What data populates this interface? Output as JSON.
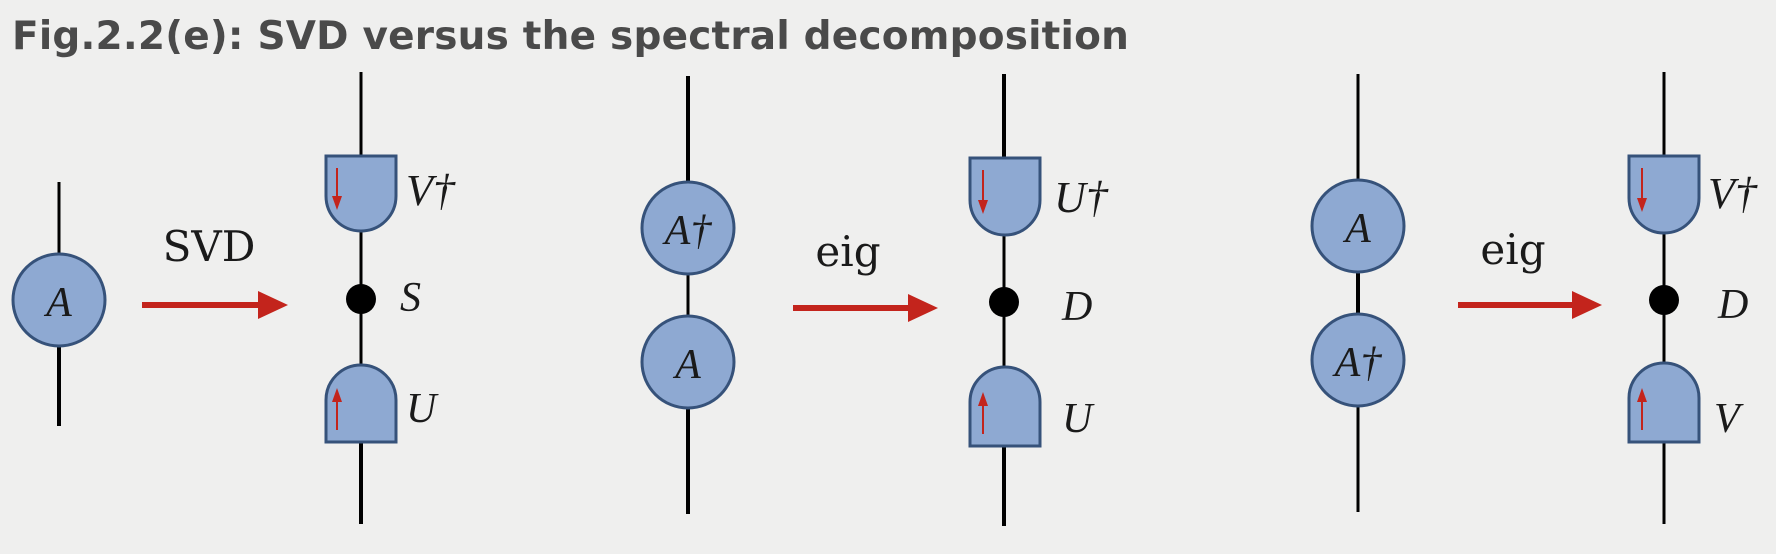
{
  "title": "Fig.2.2(e): SVD versus the spectral decomposition",
  "panels": [
    {
      "input_nodes": [
        "A"
      ],
      "operation": "SVD",
      "outputs": {
        "top": "V†",
        "middle": "S",
        "bottom": "U"
      }
    },
    {
      "input_nodes": [
        "A†",
        "A"
      ],
      "operation": "eig",
      "outputs": {
        "top": "U†",
        "middle": "D",
        "bottom": "U"
      }
    },
    {
      "input_nodes": [
        "A",
        "A†"
      ],
      "operation": "eig",
      "outputs": {
        "top": "V†",
        "middle": "D",
        "bottom": "V"
      }
    }
  ],
  "colors": {
    "node_fill": "#8ea9d2",
    "node_stroke": "#36527a",
    "arrow": "#c3241c",
    "title": "#4a4a4a"
  }
}
